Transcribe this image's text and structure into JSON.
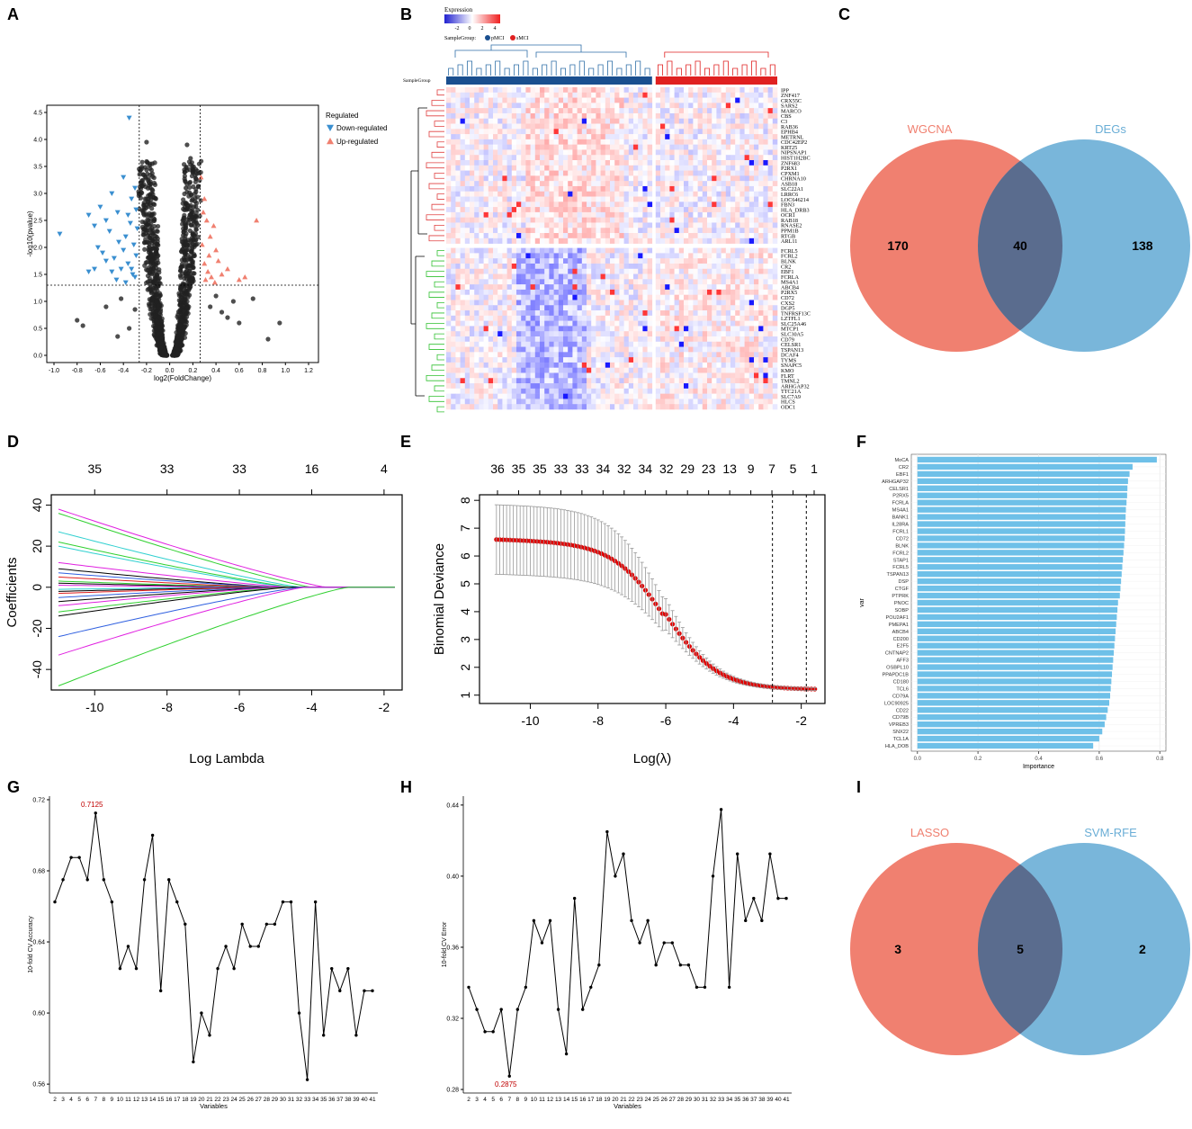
{
  "panels": {
    "A": "A",
    "B": "B",
    "C": "C",
    "D": "D",
    "E": "E",
    "F": "F",
    "G": "G",
    "H": "H",
    "I": "I"
  },
  "chart_data": [
    {
      "id": "A",
      "type": "scatter",
      "xlabel": "log2(FoldChange)",
      "ylabel": "-log10(pvalue)",
      "xlim": [
        -1.0,
        1.2
      ],
      "ylim": [
        0,
        4.5
      ],
      "xticks": [
        "-1.0",
        "-0.8",
        "-0.6",
        "-0.4",
        "-0.2",
        "0.0",
        "0.2",
        "0.4",
        "0.6",
        "0.8",
        "1.0",
        "1.2"
      ],
      "yticks": [
        "0.0",
        "0.5",
        "1.0",
        "1.5",
        "2.0",
        "2.5",
        "3.0",
        "3.5",
        "4.0",
        "4.5"
      ],
      "fc_threshold": 0.263,
      "p_threshold": 1.3,
      "legend_title": "Regulated",
      "legend": [
        {
          "name": "Down-regulated",
          "color": "#3a8fd0"
        },
        {
          "name": "Up-regulated",
          "color": "#f08070"
        }
      ],
      "ns_color": "#222222",
      "down_points": [
        [
          -0.95,
          2.25
        ],
        [
          -0.7,
          2.6
        ],
        [
          -0.65,
          2.4
        ],
        [
          -0.6,
          2.75
        ],
        [
          -0.55,
          2.5
        ],
        [
          -0.5,
          3.0
        ],
        [
          -0.45,
          2.65
        ],
        [
          -0.4,
          3.3
        ],
        [
          -0.38,
          2.2
        ],
        [
          -0.35,
          4.4
        ],
        [
          -0.33,
          2.9
        ],
        [
          -0.3,
          3.1
        ],
        [
          -0.62,
          2.0
        ],
        [
          -0.58,
          1.9
        ],
        [
          -0.52,
          2.3
        ],
        [
          -0.48,
          1.8
        ],
        [
          -0.44,
          2.1
        ],
        [
          -0.42,
          1.6
        ],
        [
          -0.4,
          1.95
        ],
        [
          -0.36,
          1.7
        ],
        [
          -0.34,
          2.45
        ],
        [
          -0.32,
          1.5
        ],
        [
          -0.31,
          2.05
        ],
        [
          -0.3,
          1.45
        ],
        [
          -0.29,
          1.85
        ],
        [
          -0.28,
          2.35
        ],
        [
          -0.5,
          1.55
        ],
        [
          -0.46,
          1.4
        ],
        [
          -0.55,
          1.75
        ],
        [
          -0.38,
          1.35
        ],
        [
          -0.65,
          1.6
        ],
        [
          -0.7,
          1.55
        ],
        [
          -0.33,
          1.6
        ],
        [
          -0.36,
          2.6
        ],
        [
          -0.29,
          2.7
        ]
      ],
      "up_points": [
        [
          0.27,
          3.3
        ],
        [
          0.3,
          2.9
        ],
        [
          0.32,
          2.5
        ],
        [
          0.35,
          2.2
        ],
        [
          0.38,
          2.4
        ],
        [
          0.4,
          1.95
        ],
        [
          0.3,
          1.7
        ],
        [
          0.33,
          1.55
        ],
        [
          0.36,
          1.45
        ],
        [
          0.42,
          1.75
        ],
        [
          0.45,
          1.5
        ],
        [
          0.5,
          1.6
        ],
        [
          0.6,
          1.4
        ],
        [
          0.65,
          1.45
        ],
        [
          0.75,
          2.5
        ],
        [
          0.28,
          2.05
        ],
        [
          0.31,
          1.4
        ],
        [
          0.34,
          1.85
        ],
        [
          0.29,
          2.65
        ],
        [
          0.39,
          1.35
        ]
      ],
      "ns_extra_points": [
        [
          -0.8,
          0.65
        ],
        [
          -0.75,
          0.55
        ],
        [
          -0.55,
          0.9
        ],
        [
          -0.45,
          0.35
        ],
        [
          -0.35,
          0.5
        ],
        [
          0.45,
          0.8
        ],
        [
          0.5,
          0.7
        ],
        [
          0.55,
          1.0
        ],
        [
          0.6,
          0.6
        ],
        [
          0.72,
          1.05
        ],
        [
          0.95,
          0.6
        ],
        [
          0.85,
          0.3
        ],
        [
          -0.2,
          3.95
        ],
        [
          0.15,
          3.9
        ],
        [
          0.18,
          3.65
        ],
        [
          -0.15,
          3.55
        ],
        [
          0.2,
          3.4
        ],
        [
          -0.18,
          3.2
        ],
        [
          0.14,
          3.1
        ],
        [
          -0.12,
          2.9
        ],
        [
          0.22,
          2.85
        ],
        [
          -0.22,
          2.6
        ],
        [
          0.4,
          1.1
        ],
        [
          -0.42,
          1.05
        ],
        [
          0.35,
          0.9
        ],
        [
          -0.3,
          0.85
        ]
      ]
    },
    {
      "id": "B",
      "type": "heatmap",
      "legend_title": "Expression",
      "legend_ticks": [
        "-2",
        "0",
        "2",
        "4"
      ],
      "legend_colors": [
        "#2020d0",
        "#ffffff",
        "#f02020"
      ],
      "annotation_label": "SampleGroup",
      "groups": [
        {
          "name": "pMCI",
          "color": "#1a4f8f",
          "count": 44
        },
        {
          "name": "sMCI",
          "color": "#e02020",
          "count": 26
        }
      ],
      "n_rows": 61,
      "upregulated_rows_count": 32,
      "genes": [
        "IPP",
        "ZNF417",
        "CRX55C",
        "SARS2",
        "MARCO",
        "CBS",
        "C3",
        "RAB36",
        "EPHB4",
        "METRNL",
        "CDC42EP2",
        "KRT25",
        "NIPSNAP1",
        "HIST1H2BC",
        "ZNF683",
        "P2RX1",
        "CPXM1",
        "CHRNA10",
        "ASB18",
        "SLC22A1",
        "LRRC6",
        "LOC646214",
        "FBN3",
        "HLA_DRB3",
        "OCR1",
        "RAB18",
        "RNASE2",
        "PPM1B",
        "RTGB",
        "ARL11",
        "FCRL5",
        "FCRL2",
        "BLNK",
        "CR2",
        "EBF1",
        "FCRLA",
        "MS4A1",
        "ABCB4",
        "P2RX5",
        "CD72",
        "CXS2",
        "DGP5",
        "TNFRSF13C",
        "LZTFL1",
        "SLC25A46",
        "MTCP1",
        "SLC30A5",
        "CD79",
        "CELSR1",
        "TSPAN13",
        "DCAF4",
        "TYMS",
        "SNAPC5",
        "KMO",
        "FLRT",
        "TMNL2",
        "ARHGAP32",
        "TTC21A",
        "SLC7A9",
        "HLCS",
        "ODC1"
      ]
    },
    {
      "id": "C",
      "type": "venn",
      "sets": [
        {
          "name": "WGCNA",
          "color": "#f08070",
          "only": "170"
        },
        {
          "name": "DEGs",
          "color": "#6aaed6",
          "only": "138"
        }
      ],
      "intersection": "40"
    },
    {
      "id": "D",
      "type": "line",
      "xlabel": "Log Lambda",
      "ylabel": "Coefficients",
      "xlim": [
        -11.2,
        -1.5
      ],
      "ylim": [
        -50,
        45
      ],
      "xticks": [
        "-10",
        "-8",
        "-6",
        "-4",
        "-2"
      ],
      "yticks": [
        "-40",
        "-20",
        "0",
        "20",
        "40"
      ],
      "top_ticks": [
        "35",
        "33",
        "33",
        "16",
        "4"
      ],
      "top_tick_x": [
        -10,
        -8,
        -6,
        -4,
        -2
      ],
      "series": [
        {
          "v": 38,
          "c": "#e020e0",
          "k": -3.6
        },
        {
          "v": 36,
          "c": "#30d030",
          "k": -4.0
        },
        {
          "v": 27,
          "c": "#30d0d0",
          "k": -4.3
        },
        {
          "v": 22,
          "c": "#30d030",
          "k": -4.5
        },
        {
          "v": 20,
          "c": "#30d0d0",
          "k": -4.6
        },
        {
          "v": 12,
          "c": "#e020e0",
          "k": -4.6
        },
        {
          "v": 9,
          "c": "#000000",
          "k": -5.0
        },
        {
          "v": 7,
          "c": "#3060e0",
          "k": -5.0
        },
        {
          "v": 5,
          "c": "#e02020",
          "k": -5.2
        },
        {
          "v": 3,
          "c": "#30d030",
          "k": -5.4
        },
        {
          "v": 2,
          "c": "#000000",
          "k": -5.5
        },
        {
          "v": 1,
          "c": "#e020e0",
          "k": -5.6
        },
        {
          "v": -1,
          "c": "#30d0d0",
          "k": -5.6
        },
        {
          "v": -2,
          "c": "#000000",
          "k": -5.5
        },
        {
          "v": -3,
          "c": "#e02020",
          "k": -5.4
        },
        {
          "v": -5,
          "c": "#3060e0",
          "k": -5.2
        },
        {
          "v": -7,
          "c": "#000000",
          "k": -5.0
        },
        {
          "v": -9,
          "c": "#e020e0",
          "k": -4.9
        },
        {
          "v": -12,
          "c": "#30d030",
          "k": -4.7
        },
        {
          "v": -14,
          "c": "#000000",
          "k": -4.6
        },
        {
          "v": -24,
          "c": "#3060e0",
          "k": -4.3
        },
        {
          "v": -33,
          "c": "#e020e0",
          "k": -4.2
        },
        {
          "v": -48,
          "c": "#30d030",
          "k": -3.0
        }
      ]
    },
    {
      "id": "E",
      "type": "line",
      "xlabel": "Log(λ)",
      "ylabel": "Binomial Deviance",
      "xlim": [
        -11.5,
        -1.3
      ],
      "ylim": [
        0.7,
        8.2
      ],
      "xticks": [
        "-10",
        "-8",
        "-6",
        "-4",
        "-2"
      ],
      "yticks": [
        "1",
        "2",
        "3",
        "4",
        "5",
        "6",
        "7",
        "8"
      ],
      "top_ticks": [
        "36",
        "35",
        "35",
        "33",
        "33",
        "34",
        "32",
        "34",
        "32",
        "29",
        "23",
        "13",
        "9",
        "7",
        "5",
        "1"
      ],
      "vlines": [
        -2.85,
        -1.85
      ],
      "curve": {
        "start": 6.6,
        "end": 1.2,
        "x_from": -11.0,
        "x_to": -1.6,
        "mid": -6.0,
        "steep": 1.0
      }
    },
    {
      "id": "F",
      "type": "bar",
      "xlabel": "Importance",
      "ylabel": "var",
      "xlim": [
        -0.02,
        0.82
      ],
      "xticks": [
        "0.0",
        "0.2",
        "0.4",
        "0.6",
        "0.8"
      ],
      "color": "#6ec0e8",
      "categories": [
        "MoCA",
        "CR2",
        "EBF1",
        "ARHGAP32",
        "CELSR1",
        "P2RX5",
        "FCRLA",
        "MS4A1",
        "BANK1",
        "IL28RA",
        "FCRL1",
        "CD72",
        "BLNK",
        "FCRL2",
        "STAP1",
        "FCRL5",
        "TSPAN13",
        "DSP",
        "CTGF",
        "PTPRK",
        "PNOC",
        "SOBP",
        "POU2AF1",
        "PMEPA1",
        "ABCB4",
        "CD200",
        "E2F5",
        "CNTNAP2",
        "AFF3",
        "OSBPL10",
        "PPAPDC1B",
        "CD180",
        "TCL6",
        "CD79A",
        "LOC90925",
        "CD22",
        "CD79B",
        "VPREB3",
        "SNX22",
        "TCL1A",
        "HLA_DOB"
      ],
      "values": [
        0.79,
        0.71,
        0.7,
        0.695,
        0.693,
        0.692,
        0.69,
        0.688,
        0.687,
        0.686,
        0.685,
        0.684,
        0.682,
        0.68,
        0.678,
        0.676,
        0.674,
        0.672,
        0.67,
        0.668,
        0.662,
        0.66,
        0.658,
        0.656,
        0.654,
        0.652,
        0.65,
        0.648,
        0.646,
        0.644,
        0.642,
        0.64,
        0.638,
        0.636,
        0.633,
        0.628,
        0.623,
        0.618,
        0.61,
        0.6,
        0.58
      ]
    },
    {
      "id": "G",
      "type": "line",
      "xlabel": "Variables",
      "ylabel": "10-fold CV Accuracy",
      "ylim": [
        0.555,
        0.722
      ],
      "yticks": [
        "0.56",
        "0.60",
        "0.64",
        "0.68",
        "0.72"
      ],
      "x": [
        "2",
        "3",
        "4",
        "5",
        "6",
        "7",
        "8",
        "9",
        "10",
        "11",
        "12",
        "13",
        "14",
        "15",
        "16",
        "17",
        "18",
        "19",
        "20",
        "21",
        "22",
        "23",
        "24",
        "25",
        "26",
        "27",
        "28",
        "29",
        "30",
        "31",
        "32",
        "33",
        "34",
        "35",
        "36",
        "37",
        "38",
        "39",
        "40",
        "41"
      ],
      "values": [
        0.6625,
        0.675,
        0.6875,
        0.6875,
        0.675,
        0.7125,
        0.675,
        0.6625,
        0.625,
        0.6375,
        0.625,
        0.675,
        0.7,
        0.6125,
        0.675,
        0.6625,
        0.65,
        0.5725,
        0.6,
        0.5875,
        0.625,
        0.6375,
        0.625,
        0.65,
        0.6375,
        0.6375,
        0.65,
        0.65,
        0.6625,
        0.6625,
        0.6,
        0.5625,
        0.6625,
        0.5875,
        0.625,
        0.6125,
        0.625,
        0.5875,
        0.6125,
        0.6125
      ],
      "annotation": "0.7125",
      "annotation_index": 5
    },
    {
      "id": "H",
      "type": "line",
      "xlabel": "Variables",
      "ylabel": "10-fold CV Error",
      "ylim": [
        0.278,
        0.445
      ],
      "yticks": [
        "0.28",
        "0.32",
        "0.36",
        "0.40",
        "0.44"
      ],
      "x": [
        "2",
        "3",
        "4",
        "5",
        "6",
        "7",
        "8",
        "9",
        "10",
        "11",
        "12",
        "13",
        "14",
        "15",
        "16",
        "17",
        "18",
        "19",
        "20",
        "21",
        "22",
        "23",
        "24",
        "25",
        "26",
        "27",
        "28",
        "29",
        "30",
        "31",
        "32",
        "33",
        "34",
        "35",
        "36",
        "37",
        "38",
        "39",
        "40",
        "41"
      ],
      "values": [
        0.3375,
        0.325,
        0.3125,
        0.3125,
        0.325,
        0.2875,
        0.325,
        0.3375,
        0.375,
        0.3625,
        0.375,
        0.325,
        0.3,
        0.3875,
        0.325,
        0.3375,
        0.35,
        0.425,
        0.4,
        0.4125,
        0.375,
        0.3625,
        0.375,
        0.35,
        0.3625,
        0.3625,
        0.35,
        0.35,
        0.3375,
        0.3375,
        0.4,
        0.4375,
        0.3375,
        0.4125,
        0.375,
        0.3875,
        0.375,
        0.4125,
        0.3875,
        0.3875
      ],
      "annotation": "0.2875",
      "annotation_index": 5
    },
    {
      "id": "I",
      "type": "venn",
      "sets": [
        {
          "name": "LASSO",
          "color": "#f08070",
          "only": "3"
        },
        {
          "name": "SVM-RFE",
          "color": "#6aaed6",
          "only": "2"
        }
      ],
      "intersection": "5"
    }
  ]
}
